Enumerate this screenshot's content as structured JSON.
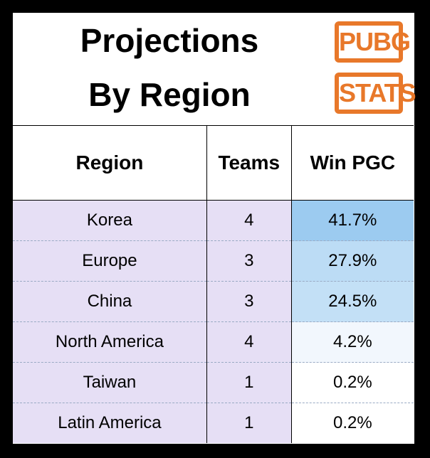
{
  "header": {
    "title_lines": [
      "Projections",
      "By Region"
    ],
    "logo": [
      "PUBG",
      "STATS"
    ]
  },
  "table": {
    "columns": [
      "Region",
      "Teams",
      "Win PGC"
    ],
    "rows": [
      [
        "Korea",
        "4",
        "41.7%"
      ],
      [
        "Europe",
        "3",
        "27.9%"
      ],
      [
        "China",
        "3",
        "24.5%"
      ],
      [
        "North America",
        "4",
        "4.2%"
      ],
      [
        "Taiwan",
        "1",
        "0.2%"
      ],
      [
        "Latin America",
        "1",
        "0.2%"
      ]
    ]
  }
}
